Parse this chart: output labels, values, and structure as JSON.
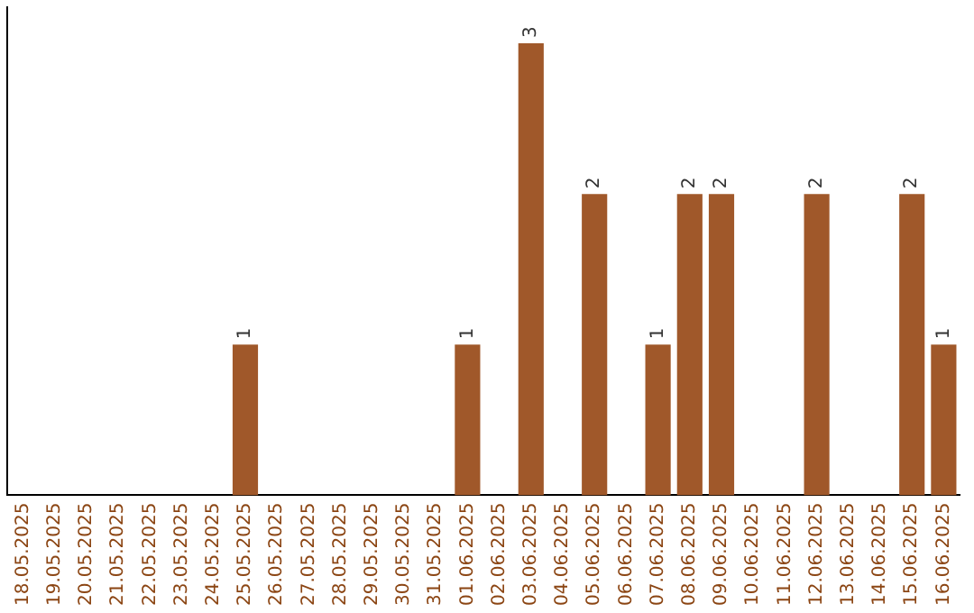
{
  "chart_data": {
    "type": "bar",
    "categories": [
      "18.05.2025",
      "19.05.2025",
      "20.05.2025",
      "21.05.2025",
      "22.05.2025",
      "23.05.2025",
      "24.05.2025",
      "25.05.2025",
      "26.05.2025",
      "27.05.2025",
      "28.05.2025",
      "29.05.2025",
      "30.05.2025",
      "31.05.2025",
      "01.06.2025",
      "02.06.2025",
      "03.06.2025",
      "04.06.2025",
      "05.06.2025",
      "06.06.2025",
      "07.06.2025",
      "08.06.2025",
      "09.06.2025",
      "10.06.2025",
      "11.06.2025",
      "12.06.2025",
      "13.06.2025",
      "14.06.2025",
      "15.06.2025",
      "16.06.2025"
    ],
    "values": [
      0,
      0,
      0,
      0,
      0,
      0,
      0,
      1,
      0,
      0,
      0,
      0,
      0,
      0,
      1,
      0,
      3,
      0,
      2,
      0,
      1,
      2,
      2,
      0,
      0,
      2,
      0,
      0,
      2,
      1
    ],
    "value_labels": [
      null,
      null,
      null,
      null,
      null,
      null,
      null,
      "1",
      null,
      null,
      null,
      null,
      null,
      null,
      "1",
      null,
      "3",
      null,
      "2",
      null,
      "1",
      "2",
      "2",
      null,
      null,
      "2",
      null,
      null,
      "2",
      "1"
    ],
    "color": "#a0582a",
    "grid": false,
    "legend": false,
    "tick_labels": "x"
  }
}
